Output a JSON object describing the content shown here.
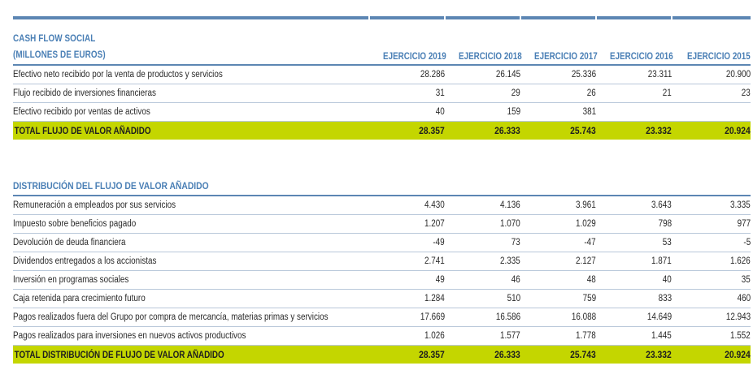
{
  "header": {
    "title_line1": "CASH FLOW SOCIAL",
    "title_line2": "(MILLONES DE EUROS)",
    "years": [
      "EJERCICIO 2019",
      "EJERCICIO 2018",
      "EJERCICIO 2017",
      "EJERCICIO 2016",
      "EJERCICIO 2015"
    ]
  },
  "section1": {
    "rows": [
      {
        "label": "Efectivo neto recibido por la venta de productos y servicios",
        "values": [
          "28.286",
          "26.145",
          "25.336",
          "23.311",
          "20.900"
        ]
      },
      {
        "label": "Flujo recibido de inversiones financieras",
        "values": [
          "31",
          "29",
          "26",
          "21",
          "23"
        ]
      },
      {
        "label": "Efectivo recibido por ventas de activos",
        "values": [
          "40",
          "159",
          "381",
          "",
          ""
        ]
      }
    ],
    "total": {
      "label": "TOTAL FLUJO DE VALOR AÑADIDO",
      "values": [
        "28.357",
        "26.333",
        "25.743",
        "23.332",
        "20.924"
      ]
    }
  },
  "section2": {
    "title": "DISTRIBUCIÓN DEL FLUJO DE VALOR AÑADIDO",
    "rows": [
      {
        "label": "Remuneración a empleados por sus servicios",
        "values": [
          "4.430",
          "4.136",
          "3.961",
          "3.643",
          "3.335"
        ]
      },
      {
        "label": "Impuesto sobre beneficios pagado",
        "values": [
          "1.207",
          "1.070",
          "1.029",
          "798",
          "977"
        ]
      },
      {
        "label": "Devolución de deuda financiera",
        "values": [
          "-49",
          "73",
          "-47",
          "53",
          "-5"
        ]
      },
      {
        "label": "Dividendos entregados a los accionistas",
        "values": [
          "2.741",
          "2.335",
          "2.127",
          "1.871",
          "1.626"
        ]
      },
      {
        "label": "Inversión en programas sociales",
        "values": [
          "49",
          "46",
          "48",
          "40",
          "35"
        ]
      },
      {
        "label": "Caja retenida para crecimiento futuro",
        "values": [
          "1.284",
          "510",
          "759",
          "833",
          "460"
        ]
      },
      {
        "label": "Pagos realizados fuera del Grupo por compra de mercancía, materias primas y servicios",
        "values": [
          "17.669",
          "16.586",
          "16.088",
          "14.649",
          "12.943"
        ]
      },
      {
        "label": "Pagos realizados para inversiones en nuevos activos productivos",
        "values": [
          "1.026",
          "1.577",
          "1.778",
          "1.445",
          "1.552"
        ]
      }
    ],
    "total": {
      "label": "TOTAL DISTRIBUCIÓN DE FLUJO DE VALOR AÑADIDO",
      "values": [
        "28.357",
        "26.333",
        "25.743",
        "23.332",
        "20.924"
      ]
    }
  },
  "colors": {
    "accent": "#4a7fb5",
    "rule": "#5c86b3",
    "highlight": "#c4d600"
  }
}
